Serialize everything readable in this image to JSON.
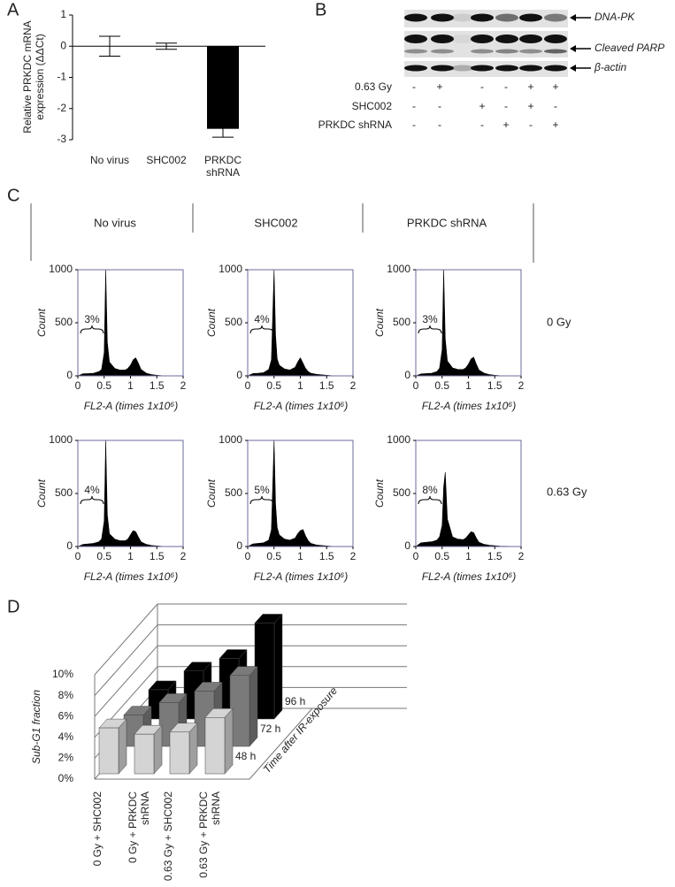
{
  "panel_labels": [
    "A",
    "B",
    "C",
    "D"
  ],
  "blot": {
    "proteins": [
      "DNA-PK",
      "Cleaved PARP",
      "β-actin"
    ],
    "conditions": [
      "0.63 Gy",
      "SHC002",
      "PRKDC shRNA"
    ],
    "signs": [
      [
        "-",
        "+",
        "-",
        "-",
        "+",
        "+"
      ],
      [
        "-",
        "-",
        "+",
        "-",
        "+",
        "-"
      ],
      [
        "-",
        "-",
        "-",
        "+",
        "-",
        "+"
      ]
    ]
  },
  "panel_c": {
    "columns": [
      "No virus",
      "SHC002",
      "PRKDC shRNA"
    ],
    "rows": [
      "0 Gy",
      "0.63 Gy"
    ]
  },
  "chart_data": [
    {
      "type": "bar",
      "ylabel": "Relative PRKDC mRNA expression (ΔΔCt)",
      "categories": [
        "No virus",
        "SHC002",
        "PRKDC shRNA"
      ],
      "values": [
        0,
        0,
        -2.65
      ],
      "errors": [
        0.32,
        0.1,
        0.27
      ],
      "color": "#000000",
      "ylim": [
        -3,
        1
      ],
      "yticks": [
        -3,
        -2,
        -1,
        0,
        1
      ]
    },
    {
      "type": "area",
      "ylabel": "Count",
      "xlabel": "FL2-A (times 1x10⁶)",
      "annotation": "3%",
      "color": "#000000",
      "x": [
        0,
        0.1,
        0.2,
        0.3,
        0.4,
        0.45,
        0.5,
        0.53,
        0.56,
        0.6,
        0.7,
        0.8,
        0.9,
        0.95,
        1.0,
        1.05,
        1.1,
        1.15,
        1.2,
        1.3,
        1.4,
        1.5,
        1.6,
        2
      ],
      "values": [
        0,
        20,
        22,
        25,
        40,
        60,
        220,
        1000,
        320,
        130,
        70,
        55,
        55,
        70,
        100,
        150,
        170,
        120,
        60,
        25,
        12,
        6,
        2,
        0
      ],
      "xlim": [
        0,
        2
      ],
      "ylim": [
        0,
        1000
      ],
      "xticks": [
        0,
        0.5,
        1,
        1.5,
        2
      ],
      "yticks": [
        0,
        500,
        1000
      ]
    },
    {
      "type": "area",
      "ylabel": "Count",
      "xlabel": "FL2-A (times 1x10⁶)",
      "annotation": "4%",
      "color": "#000000",
      "x": [
        0,
        0.1,
        0.2,
        0.3,
        0.4,
        0.45,
        0.5,
        0.53,
        0.56,
        0.6,
        0.7,
        0.8,
        0.9,
        0.95,
        1.0,
        1.05,
        1.1,
        1.15,
        1.2,
        1.3,
        1.4,
        1.5,
        1.6,
        2
      ],
      "values": [
        0,
        22,
        25,
        30,
        60,
        150,
        1000,
        380,
        160,
        100,
        65,
        55,
        80,
        130,
        170,
        120,
        70,
        40,
        25,
        15,
        10,
        6,
        2,
        0
      ],
      "xlim": [
        0,
        2
      ],
      "ylim": [
        0,
        1000
      ],
      "xticks": [
        0,
        0.5,
        1,
        1.5,
        2
      ],
      "yticks": [
        0,
        500,
        1000
      ]
    },
    {
      "type": "area",
      "ylabel": "Count",
      "xlabel": "FL2-A (times 1x10⁶)",
      "annotation": "3%",
      "color": "#000000",
      "x": [
        0,
        0.1,
        0.2,
        0.3,
        0.4,
        0.45,
        0.5,
        0.53,
        0.56,
        0.6,
        0.7,
        0.8,
        0.9,
        0.95,
        1.0,
        1.05,
        1.1,
        1.15,
        1.2,
        1.3,
        1.4,
        1.5,
        1.6,
        2
      ],
      "values": [
        0,
        18,
        22,
        25,
        40,
        70,
        250,
        1000,
        350,
        140,
        75,
        60,
        60,
        75,
        110,
        160,
        175,
        110,
        55,
        25,
        12,
        6,
        2,
        0
      ],
      "xlim": [
        0,
        2
      ],
      "ylim": [
        0,
        1000
      ],
      "xticks": [
        0,
        0.5,
        1,
        1.5,
        2
      ],
      "yticks": [
        0,
        500,
        1000
      ]
    },
    {
      "type": "area",
      "ylabel": "Count",
      "xlabel": "FL2-A (times 1x10⁶)",
      "annotation": "4%",
      "color": "#000000",
      "x": [
        0,
        0.1,
        0.2,
        0.3,
        0.4,
        0.45,
        0.5,
        0.53,
        0.56,
        0.6,
        0.7,
        0.8,
        0.9,
        0.95,
        1.0,
        1.05,
        1.1,
        1.15,
        1.2,
        1.3,
        1.4,
        1.5,
        1.6,
        2
      ],
      "values": [
        0,
        20,
        25,
        30,
        45,
        70,
        240,
        1000,
        300,
        120,
        70,
        55,
        55,
        70,
        110,
        150,
        140,
        90,
        45,
        20,
        10,
        6,
        2,
        0
      ],
      "xlim": [
        0,
        2
      ],
      "ylim": [
        0,
        1000
      ],
      "xticks": [
        0,
        0.5,
        1,
        1.5,
        2
      ],
      "yticks": [
        0,
        500,
        1000
      ]
    },
    {
      "type": "area",
      "ylabel": "Count",
      "xlabel": "FL2-A (times 1x10⁶)",
      "annotation": "5%",
      "color": "#000000",
      "x": [
        0,
        0.1,
        0.2,
        0.3,
        0.4,
        0.45,
        0.5,
        0.53,
        0.56,
        0.6,
        0.7,
        0.8,
        0.9,
        0.95,
        1.0,
        1.05,
        1.1,
        1.15,
        1.2,
        1.3,
        1.4,
        1.5,
        1.6,
        2
      ],
      "values": [
        0,
        25,
        30,
        35,
        60,
        160,
        1000,
        400,
        180,
        110,
        70,
        60,
        80,
        120,
        150,
        160,
        100,
        55,
        30,
        15,
        10,
        6,
        2,
        0
      ],
      "xlim": [
        0,
        2
      ],
      "ylim": [
        0,
        1000
      ],
      "xticks": [
        0,
        0.5,
        1,
        1.5,
        2
      ],
      "yticks": [
        0,
        500,
        1000
      ]
    },
    {
      "type": "area",
      "ylabel": "Count",
      "xlabel": "FL2-A (times 1x10⁶)",
      "annotation": "8%",
      "color": "#000000",
      "x": [
        0,
        0.1,
        0.2,
        0.3,
        0.4,
        0.45,
        0.5,
        0.53,
        0.56,
        0.6,
        0.7,
        0.8,
        0.9,
        0.95,
        1.0,
        1.05,
        1.1,
        1.15,
        1.2,
        1.3,
        1.4,
        1.5,
        1.6,
        2
      ],
      "values": [
        0,
        35,
        40,
        45,
        60,
        90,
        200,
        560,
        700,
        260,
        90,
        70,
        65,
        80,
        110,
        140,
        130,
        80,
        40,
        20,
        12,
        8,
        3,
        0
      ],
      "xlim": [
        0,
        2
      ],
      "ylim": [
        0,
        1000
      ],
      "xticks": [
        0,
        0.5,
        1,
        1.5,
        2
      ],
      "yticks": [
        0,
        500,
        1000
      ]
    },
    {
      "type": "bar3d",
      "ylabel": "Sub-G1 fraction",
      "zlabel": "Time after IR-exposure",
      "categories": [
        "0 Gy + SHC002",
        "0 Gy + PRKDC shRNA",
        "0.63 Gy + SHC002",
        "0.63 Gy + PRKDC shRNA"
      ],
      "series": [
        {
          "name": "48 h",
          "color": "#d4d4d4",
          "values": [
            4.4,
            3.8,
            4.0,
            5.4
          ]
        },
        {
          "name": "72 h",
          "color": "#7a7a7a",
          "values": [
            3.0,
            4.2,
            5.3,
            6.8
          ]
        },
        {
          "name": "96 h",
          "color": "#000000",
          "values": [
            2.8,
            4.6,
            5.8,
            9.2
          ]
        }
      ],
      "ylim": [
        0,
        10
      ],
      "yticks": [
        {
          "value": 0,
          "label": "0%"
        },
        {
          "value": 2,
          "label": "2%"
        },
        {
          "value": 4,
          "label": "4%"
        },
        {
          "value": 6,
          "label": "6%"
        },
        {
          "value": 8,
          "label": "8%"
        },
        {
          "value": 10,
          "label": "10%"
        }
      ]
    }
  ]
}
